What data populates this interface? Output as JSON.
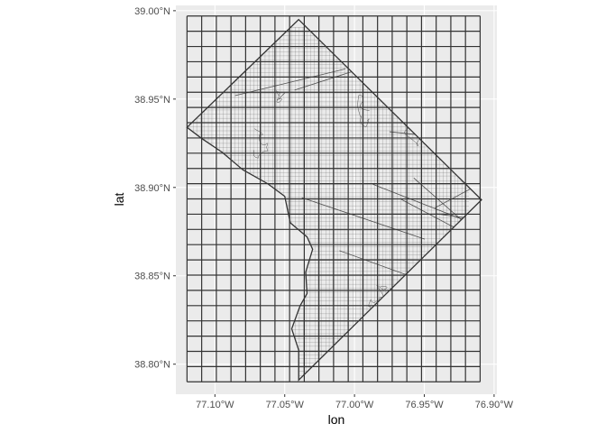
{
  "chart_data": {
    "type": "map",
    "xlabel": "lon",
    "ylabel": "lat",
    "xlim": [
      -77.128,
      -76.898
    ],
    "ylim": [
      38.783,
      39.003
    ],
    "x_ticks": [
      {
        "value": -77.1,
        "label": "77.10°W"
      },
      {
        "value": -77.05,
        "label": "77.05°W"
      },
      {
        "value": -77.0,
        "label": "77.00°W"
      },
      {
        "value": -76.95,
        "label": "76.95°W"
      },
      {
        "value": -76.9,
        "label": "76.90°W"
      }
    ],
    "y_ticks": [
      {
        "value": 38.8,
        "label": "38.80°N"
      },
      {
        "value": 38.85,
        "label": "38.85°N"
      },
      {
        "value": 38.9,
        "label": "38.90°N"
      },
      {
        "value": 38.95,
        "label": "38.95°N"
      },
      {
        "value": 39.0,
        "label": "39.00°N"
      }
    ],
    "grid_overlay": {
      "lon_min": -77.12,
      "lon_max": -76.91,
      "lat_min": 38.79,
      "lat_max": 38.997,
      "cols": 20,
      "rows": 24
    },
    "boundary": [
      [
        -77.04,
        38.995
      ],
      [
        -76.909,
        38.893
      ],
      [
        -77.04,
        38.791
      ],
      [
        -77.04,
        38.808
      ],
      [
        -77.045,
        38.82
      ],
      [
        -77.039,
        38.833
      ],
      [
        -77.034,
        38.84
      ],
      [
        -77.035,
        38.852
      ],
      [
        -77.03,
        38.865
      ],
      [
        -77.034,
        38.872
      ],
      [
        -77.046,
        38.88
      ],
      [
        -77.05,
        38.895
      ],
      [
        -77.062,
        38.902
      ],
      [
        -77.08,
        38.91
      ],
      [
        -77.095,
        38.92
      ],
      [
        -77.11,
        38.928
      ],
      [
        -77.12,
        38.934
      ],
      [
        -77.04,
        38.995
      ]
    ],
    "colors": {
      "panel_background": "#ebebeb",
      "major_gridline": "#ffffff",
      "grid_overlay": "#333333",
      "boundary": "#333333",
      "streets": "#4d4d4d"
    },
    "legend": "none"
  }
}
